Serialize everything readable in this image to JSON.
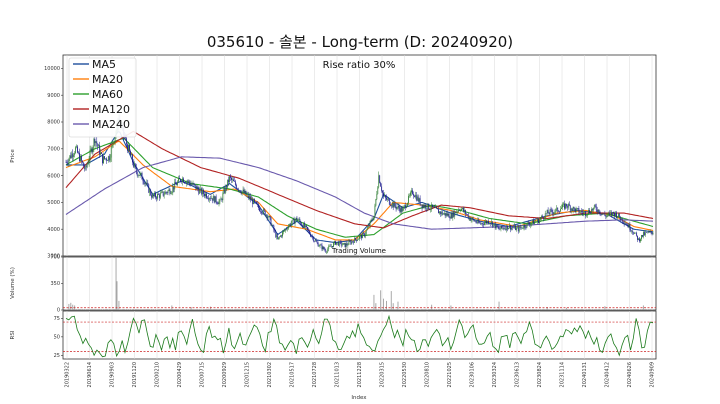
{
  "chart_data": {
    "type": "line",
    "title": "035610 - 솔본 - Long-term (D: 20240920)",
    "annotation": "Rise ratio 30%",
    "volume_caption": "Trading Volume",
    "xlabel": "Index",
    "price_panel": {
      "ylabel": "Price",
      "ylim": [
        3000,
        10500
      ],
      "yticks": [
        3000,
        4000,
        5000,
        6000,
        7000,
        8000,
        9000,
        10000
      ],
      "series": [
        {
          "name": "MA5",
          "color": "#1f4e9c"
        },
        {
          "name": "MA20",
          "color": "#ff7f0e"
        },
        {
          "name": "MA60",
          "color": "#2ca02c"
        },
        {
          "name": "MA120",
          "color": "#b22222"
        },
        {
          "name": "MA240",
          "color": "#6a5aad"
        }
      ],
      "candle_up_color": "#2e7d32",
      "candle_down_color": "#1a1a8c",
      "close_path": [
        [
          0,
          6500
        ],
        [
          10,
          7000
        ],
        [
          20,
          6200
        ],
        [
          30,
          7400
        ],
        [
          38,
          6600
        ],
        [
          45,
          6700
        ],
        [
          55,
          8100
        ],
        [
          62,
          7300
        ],
        [
          72,
          6200
        ],
        [
          80,
          5900
        ],
        [
          90,
          5200
        ],
        [
          100,
          5300
        ],
        [
          110,
          5500
        ],
        [
          120,
          5900
        ],
        [
          130,
          5700
        ],
        [
          140,
          5400
        ],
        [
          150,
          5200
        ],
        [
          160,
          5000
        ],
        [
          170,
          5900
        ],
        [
          180,
          5500
        ],
        [
          190,
          5200
        ],
        [
          200,
          4800
        ],
        [
          210,
          4500
        ],
        [
          220,
          3600
        ],
        [
          230,
          4100
        ],
        [
          240,
          4400
        ],
        [
          250,
          4000
        ],
        [
          260,
          3500
        ],
        [
          270,
          3200
        ],
        [
          280,
          3500
        ],
        [
          290,
          3400
        ],
        [
          300,
          3600
        ],
        [
          310,
          3800
        ],
        [
          320,
          4500
        ],
        [
          325,
          6000
        ],
        [
          330,
          5200
        ],
        [
          340,
          4900
        ],
        [
          350,
          4700
        ],
        [
          360,
          5400
        ],
        [
          370,
          4900
        ],
        [
          380,
          4800
        ],
        [
          390,
          4600
        ],
        [
          400,
          4500
        ],
        [
          410,
          4800
        ],
        [
          420,
          4400
        ],
        [
          430,
          4200
        ],
        [
          440,
          4300
        ],
        [
          450,
          4000
        ],
        [
          460,
          4100
        ],
        [
          470,
          4000
        ],
        [
          480,
          4200
        ],
        [
          490,
          4300
        ],
        [
          500,
          4600
        ],
        [
          510,
          4700
        ],
        [
          520,
          4900
        ],
        [
          530,
          4700
        ],
        [
          540,
          4600
        ],
        [
          550,
          4800
        ],
        [
          560,
          4500
        ],
        [
          570,
          4600
        ],
        [
          580,
          4300
        ],
        [
          590,
          3900
        ],
        [
          595,
          3600
        ],
        [
          600,
          3800
        ],
        [
          610,
          3900
        ]
      ],
      "ma_paths": {
        "MA5": [
          [
            0,
            6400
          ],
          [
            20,
            6400
          ],
          [
            40,
            6800
          ],
          [
            55,
            7700
          ],
          [
            70,
            6500
          ],
          [
            90,
            5300
          ],
          [
            120,
            5800
          ],
          [
            150,
            5300
          ],
          [
            170,
            5700
          ],
          [
            200,
            4900
          ],
          [
            220,
            3800
          ],
          [
            240,
            4300
          ],
          [
            260,
            3600
          ],
          [
            280,
            3500
          ],
          [
            300,
            3600
          ],
          [
            320,
            4400
          ],
          [
            330,
            5300
          ],
          [
            350,
            4800
          ],
          [
            370,
            5000
          ],
          [
            400,
            4600
          ],
          [
            430,
            4300
          ],
          [
            460,
            4100
          ],
          [
            500,
            4500
          ],
          [
            530,
            4700
          ],
          [
            560,
            4600
          ],
          [
            590,
            4000
          ],
          [
            610,
            3900
          ]
        ],
        "MA20": [
          [
            0,
            6300
          ],
          [
            30,
            6700
          ],
          [
            55,
            7300
          ],
          [
            80,
            6400
          ],
          [
            110,
            5600
          ],
          [
            150,
            5400
          ],
          [
            175,
            5500
          ],
          [
            200,
            5000
          ],
          [
            220,
            4200
          ],
          [
            250,
            4000
          ],
          [
            280,
            3600
          ],
          [
            300,
            3600
          ],
          [
            320,
            4200
          ],
          [
            340,
            5000
          ],
          [
            370,
            4900
          ],
          [
            400,
            4700
          ],
          [
            430,
            4350
          ],
          [
            470,
            4100
          ],
          [
            510,
            4600
          ],
          [
            540,
            4700
          ],
          [
            570,
            4500
          ],
          [
            590,
            4100
          ],
          [
            610,
            3950
          ]
        ],
        "MA60": [
          [
            0,
            6400
          ],
          [
            30,
            7000
          ],
          [
            60,
            7400
          ],
          [
            90,
            6300
          ],
          [
            130,
            5700
          ],
          [
            170,
            5500
          ],
          [
            200,
            5200
          ],
          [
            230,
            4500
          ],
          [
            260,
            4000
          ],
          [
            290,
            3700
          ],
          [
            320,
            3800
          ],
          [
            350,
            4600
          ],
          [
            380,
            4900
          ],
          [
            410,
            4700
          ],
          [
            440,
            4400
          ],
          [
            480,
            4200
          ],
          [
            520,
            4500
          ],
          [
            560,
            4600
          ],
          [
            590,
            4300
          ],
          [
            610,
            4100
          ]
        ],
        "MA120": [
          [
            0,
            5550
          ],
          [
            30,
            6800
          ],
          [
            70,
            7650
          ],
          [
            100,
            7000
          ],
          [
            140,
            6300
          ],
          [
            180,
            5900
          ],
          [
            220,
            5300
          ],
          [
            260,
            4700
          ],
          [
            300,
            4200
          ],
          [
            330,
            4050
          ],
          [
            360,
            4500
          ],
          [
            390,
            4900
          ],
          [
            420,
            4800
          ],
          [
            460,
            4500
          ],
          [
            500,
            4400
          ],
          [
            540,
            4600
          ],
          [
            580,
            4600
          ],
          [
            610,
            4400
          ]
        ],
        "MA240": [
          [
            0,
            4550
          ],
          [
            40,
            5500
          ],
          [
            80,
            6300
          ],
          [
            120,
            6700
          ],
          [
            160,
            6650
          ],
          [
            200,
            6300
          ],
          [
            240,
            5800
          ],
          [
            280,
            5200
          ],
          [
            310,
            4600
          ],
          [
            340,
            4200
          ],
          [
            380,
            4000
          ],
          [
            420,
            4050
          ],
          [
            460,
            4100
          ],
          [
            500,
            4200
          ],
          [
            540,
            4300
          ],
          [
            580,
            4350
          ],
          [
            610,
            4300
          ]
        ]
      }
    },
    "volume_panel": {
      "ylabel": "Volume (%)",
      "ylim": [
        0,
        700
      ],
      "yticks": [
        0,
        350,
        700
      ],
      "threshold": 30,
      "spikes": [
        [
          3,
          80
        ],
        [
          5,
          95
        ],
        [
          7,
          70
        ],
        [
          9,
          60
        ],
        [
          52,
          700
        ],
        [
          53,
          380
        ],
        [
          55,
          120
        ],
        [
          110,
          60
        ],
        [
          130,
          40
        ],
        [
          150,
          45
        ],
        [
          320,
          200
        ],
        [
          322,
          90
        ],
        [
          327,
          260
        ],
        [
          330,
          150
        ],
        [
          333,
          120
        ],
        [
          338,
          250
        ],
        [
          340,
          90
        ],
        [
          345,
          110
        ],
        [
          380,
          70
        ],
        [
          400,
          60
        ],
        [
          450,
          110
        ],
        [
          500,
          40
        ],
        [
          520,
          30
        ],
        [
          560,
          50
        ],
        [
          600,
          60
        ]
      ]
    },
    "rsi_panel": {
      "ylabel": "RSI",
      "ylim": [
        20,
        85
      ],
      "yticks": [
        25,
        50,
        75
      ],
      "overbought": 70,
      "oversold": 30,
      "values": [
        75,
        73,
        77,
        78,
        60,
        52,
        41,
        48,
        40,
        35,
        25,
        32,
        28,
        23,
        24,
        42,
        46,
        41,
        24,
        31,
        45,
        29,
        42,
        60,
        75,
        68,
        55,
        72,
        73,
        54,
        37,
        36,
        53,
        44,
        32,
        47,
        50,
        35,
        48,
        32,
        56,
        58,
        51,
        40,
        59,
        74,
        54,
        40,
        32,
        29,
        54,
        64,
        49,
        51,
        46,
        48,
        28,
        42,
        62,
        39,
        34,
        44,
        55,
        40,
        39,
        49,
        57,
        66,
        63,
        54,
        38,
        30,
        56,
        57,
        74,
        65,
        42,
        40,
        32,
        39,
        45,
        41,
        27,
        47,
        49,
        43,
        36,
        45,
        60,
        48,
        41,
        55,
        74,
        74,
        66,
        46,
        43,
        33,
        33,
        42,
        51,
        48,
        58,
        50,
        68,
        55,
        49,
        39,
        37,
        32,
        31,
        44,
        51,
        60,
        66,
        78,
        62,
        49,
        59,
        48,
        38,
        60,
        51,
        46,
        45,
        30,
        33,
        46,
        46,
        37,
        49,
        55,
        60,
        54,
        38,
        43,
        49,
        33,
        43,
        58,
        73,
        65,
        49,
        54,
        62,
        66,
        48,
        40,
        40,
        42,
        51,
        56,
        37,
        34,
        29,
        50,
        51,
        52,
        35,
        54,
        56,
        49,
        41,
        54,
        57,
        70,
        59,
        40,
        38,
        35,
        45,
        51,
        44,
        33,
        36,
        42,
        51,
        50,
        60,
        58,
        54,
        62,
        57,
        65,
        58,
        48,
        58,
        48,
        40,
        49,
        32,
        29,
        42,
        50,
        54,
        41,
        35,
        25,
        39,
        49,
        52,
        32,
        48,
        75,
        60,
        35,
        36,
        58,
        70,
        69
      ]
    },
    "x_tick_labels": [
      "20190322",
      "20190614",
      "20190903",
      "20191120",
      "20200210",
      "20200429",
      "20200715",
      "20200929",
      "20201215",
      "20210302",
      "20210517",
      "20210728",
      "20211013",
      "20211228",
      "20220315",
      "20220530",
      "20220810",
      "20221025",
      "20230106",
      "20230324",
      "20230613",
      "20230824",
      "20231114",
      "20240131",
      "20240412",
      "20240626",
      "20240909"
    ]
  }
}
